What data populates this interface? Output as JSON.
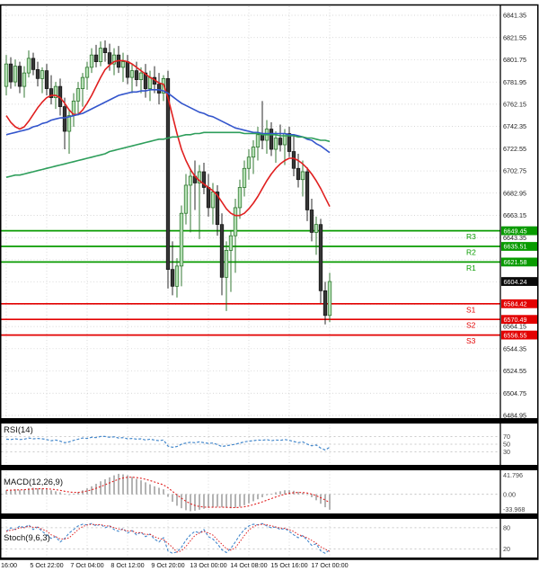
{
  "chart_data": {
    "type": "candlestick",
    "price_axis": {
      "ticks": [
        "6841.35",
        "6821.55",
        "6801.75",
        "6781.95",
        "6762.15",
        "6742.35",
        "6722.55",
        "6702.75",
        "6682.95",
        "6663.15",
        "6643.35",
        "6623.55",
        "6603.75",
        "6583.95",
        "6564.15",
        "6544.35",
        "6524.55",
        "6504.75",
        "6484.95"
      ]
    },
    "time_axis": {
      "labels": [
        "16:00",
        "5 Oct 22:00",
        "7 Oct 04:00",
        "8 Oct 12:00",
        "9 Oct 20:00",
        "13 Oct 00:00",
        "14 Oct 08:00",
        "15 Oct 16:00",
        "17 Oct 00:00"
      ],
      "label_positions": [
        0,
        9,
        18,
        27,
        36,
        45,
        54,
        63,
        72
      ]
    },
    "levels": {
      "resistance": [
        {
          "label": "R3",
          "price": 6649.45
        },
        {
          "label": "R2",
          "price": 6635.51
        },
        {
          "label": "R1",
          "price": 6621.58
        }
      ],
      "support": [
        {
          "label": "S1",
          "price": 6584.42
        },
        {
          "label": "S2",
          "price": 6570.49
        },
        {
          "label": "S3",
          "price": 6556.55
        }
      ],
      "current_price": 6604.24
    },
    "colors": {
      "resistance": "#089b00",
      "support": "#e30202",
      "current_badge": "#0a0a0a",
      "badge_text": "#ffffff",
      "ma_fast": "#e02020",
      "ma_mid": "#3355cc",
      "ma_slow": "#2e9e5b",
      "bull": "#b5e0b5",
      "bull_border": "#1d6b1d",
      "bear": "#363636",
      "bear_border": "#111111",
      "rsi_line": "#4488cc",
      "macd_hist": "#b4b4b4",
      "macd_signal": "#e02020",
      "stoch_k": "#4488cc",
      "stoch_d": "#e02020",
      "grid": "#c9c9c9",
      "axis_text": "#1a1a1a"
    },
    "candles": [
      [
        6778,
        6806,
        6770,
        6798
      ],
      [
        6798,
        6804,
        6776,
        6782
      ],
      [
        6782,
        6802,
        6778,
        6796
      ],
      [
        6796,
        6800,
        6772,
        6778
      ],
      [
        6778,
        6796,
        6768,
        6790
      ],
      [
        6790,
        6810,
        6786,
        6803
      ],
      [
        6803,
        6808,
        6788,
        6793
      ],
      [
        6793,
        6800,
        6778,
        6785
      ],
      [
        6785,
        6795,
        6772,
        6792
      ],
      [
        6792,
        6798,
        6770,
        6776
      ],
      [
        6776,
        6788,
        6762,
        6768
      ],
      [
        6768,
        6782,
        6758,
        6778
      ],
      [
        6778,
        6785,
        6752,
        6760
      ],
      [
        6760,
        6768,
        6722,
        6738
      ],
      [
        6738,
        6758,
        6718,
        6752
      ],
      [
        6752,
        6772,
        6742,
        6765
      ],
      [
        6765,
        6782,
        6752,
        6776
      ],
      [
        6776,
        6790,
        6760,
        6786
      ],
      [
        6786,
        6800,
        6775,
        6795
      ],
      [
        6795,
        6812,
        6790,
        6806
      ],
      [
        6806,
        6815,
        6795,
        6800
      ],
      [
        6800,
        6818,
        6796,
        6812
      ],
      [
        6812,
        6819,
        6800,
        6808
      ],
      [
        6808,
        6816,
        6792,
        6798
      ],
      [
        6798,
        6812,
        6788,
        6806
      ],
      [
        6806,
        6814,
        6790,
        6795
      ],
      [
        6795,
        6808,
        6782,
        6800
      ],
      [
        6800,
        6806,
        6780,
        6786
      ],
      [
        6786,
        6798,
        6772,
        6792
      ],
      [
        6792,
        6800,
        6778,
        6784
      ],
      [
        6784,
        6795,
        6772,
        6790
      ],
      [
        6790,
        6798,
        6768,
        6776
      ],
      [
        6776,
        6792,
        6765,
        6786
      ],
      [
        6786,
        6796,
        6772,
        6780
      ],
      [
        6780,
        6790,
        6762,
        6772
      ],
      [
        6772,
        6788,
        6765,
        6785
      ],
      [
        6785,
        6792,
        6598,
        6615
      ],
      [
        6615,
        6640,
        6592,
        6600
      ],
      [
        6600,
        6625,
        6590,
        6618
      ],
      [
        6618,
        6672,
        6600,
        6665
      ],
      [
        6665,
        6700,
        6655,
        6690
      ],
      [
        6690,
        6705,
        6648,
        6698
      ],
      [
        6698,
        6712,
        6668,
        6692
      ],
      [
        6692,
        6708,
        6642,
        6702
      ],
      [
        6702,
        6710,
        6682,
        6688
      ],
      [
        6688,
        6700,
        6662,
        6670
      ],
      [
        6670,
        6692,
        6655,
        6684
      ],
      [
        6684,
        6690,
        6645,
        6655
      ],
      [
        6655,
        6665,
        6592,
        6608
      ],
      [
        6608,
        6640,
        6578,
        6632
      ],
      [
        6632,
        6650,
        6595,
        6645
      ],
      [
        6645,
        6678,
        6612,
        6670
      ],
      [
        6670,
        6695,
        6660,
        6688
      ],
      [
        6688,
        6712,
        6680,
        6705
      ],
      [
        6705,
        6722,
        6695,
        6715
      ],
      [
        6715,
        6730,
        6700,
        6724
      ],
      [
        6724,
        6742,
        6712,
        6735
      ],
      [
        6735,
        6765,
        6722,
        6730
      ],
      [
        6730,
        6748,
        6718,
        6740
      ],
      [
        6740,
        6746,
        6716,
        6722
      ],
      [
        6722,
        6738,
        6710,
        6732
      ],
      [
        6732,
        6744,
        6720,
        6726
      ],
      [
        6726,
        6740,
        6708,
        6736
      ],
      [
        6736,
        6742,
        6715,
        6720
      ],
      [
        6720,
        6734,
        6698,
        6705
      ],
      [
        6705,
        6718,
        6688,
        6695
      ],
      [
        6695,
        6712,
        6680,
        6702
      ],
      [
        6702,
        6706,
        6658,
        6668
      ],
      [
        6668,
        6678,
        6640,
        6648
      ],
      [
        6648,
        6662,
        6628,
        6655
      ],
      [
        6655,
        6660,
        6585,
        6596
      ],
      [
        6596,
        6604,
        6566,
        6574
      ],
      [
        6574,
        6612,
        6568,
        6604.24
      ]
    ],
    "moving_averages": [
      {
        "name": "ma-fast-red",
        "values": [
          6752,
          6746,
          6742,
          6740,
          6742,
          6747,
          6753,
          6759,
          6764,
          6768,
          6770,
          6770,
          6768,
          6763,
          6757,
          6753,
          6753,
          6757,
          6763,
          6770,
          6778,
          6786,
          6793,
          6797,
          6800,
          6801,
          6801,
          6800,
          6798,
          6795,
          6792,
          6789,
          6786,
          6784,
          6781,
          6780,
          6768,
          6752,
          6736,
          6722,
          6712,
          6704,
          6698,
          6694,
          6691,
          6688,
          6685,
          6681,
          6675,
          6669,
          6665,
          6663,
          6663,
          6665,
          6669,
          6674,
          6680,
          6687,
          6694,
          6700,
          6705,
          6709,
          6712,
          6714,
          6714,
          6712,
          6709,
          6705,
          6700,
          6694,
          6687,
          6679,
          6671
        ]
      },
      {
        "name": "ma-mid-blue",
        "values": [
          6735,
          6736,
          6737,
          6738,
          6739,
          6740,
          6742,
          6743,
          6745,
          6746,
          6748,
          6749,
          6750,
          6750,
          6751,
          6752,
          6753,
          6754,
          6756,
          6758,
          6760,
          6762,
          6764,
          6766,
          6768,
          6770,
          6771,
          6772,
          6773,
          6773,
          6774,
          6774,
          6775,
          6775,
          6775,
          6774,
          6772,
          6769,
          6766,
          6763,
          6761,
          6759,
          6757,
          6755,
          6754,
          6752,
          6751,
          6749,
          6747,
          6745,
          6743,
          6741,
          6740,
          6739,
          6738,
          6737,
          6737,
          6736,
          6736,
          6736,
          6736,
          6736,
          6736,
          6735,
          6735,
          6734,
          6733,
          6731,
          6730,
          6727,
          6725,
          6722,
          6719
        ]
      },
      {
        "name": "ma-slow-green",
        "values": [
          6697,
          6698,
          6699,
          6699,
          6700,
          6701,
          6702,
          6703,
          6704,
          6705,
          6706,
          6707,
          6708,
          6709,
          6710,
          6711,
          6712,
          6713,
          6714,
          6715,
          6716,
          6717,
          6718,
          6720,
          6721,
          6722,
          6723,
          6724,
          6725,
          6726,
          6727,
          6728,
          6729,
          6730,
          6731,
          6731,
          6732,
          6733,
          6733,
          6734,
          6735,
          6735,
          6736,
          6736,
          6737,
          6737,
          6737,
          6737,
          6737,
          6737,
          6737,
          6737,
          6737,
          6736,
          6736,
          6736,
          6736,
          6735,
          6735,
          6735,
          6735,
          6734,
          6734,
          6734,
          6734,
          6733,
          6733,
          6732,
          6732,
          6731,
          6730,
          6730,
          6729
        ]
      }
    ],
    "indicators": {
      "rsi": {
        "label": "RSI(14)",
        "levels": [
          "70",
          "50",
          "30"
        ],
        "values": [
          63,
          62,
          64,
          62,
          63,
          66,
          64,
          65,
          64,
          62,
          59,
          61,
          58,
          54,
          56,
          60,
          63,
          66,
          65,
          68,
          67,
          70,
          70,
          68,
          69,
          66,
          67,
          64,
          65,
          63,
          64,
          61,
          63,
          61,
          59,
          61,
          45,
          42,
          44,
          50,
          53,
          55,
          54,
          56,
          54,
          52,
          53,
          49,
          44,
          46,
          48,
          50,
          53,
          56,
          58,
          59,
          61,
          60,
          62,
          59,
          61,
          60,
          62,
          60,
          57,
          54,
          56,
          50,
          46,
          48,
          40,
          35,
          42
        ]
      },
      "macd": {
        "label": "MACD(12,26,9)",
        "axis_labels": [
          "41.796",
          "0.00",
          "-33.968"
        ],
        "range": [
          41.796,
          -33.968
        ],
        "values": [
          8,
          9,
          10,
          9,
          10,
          12,
          13,
          12,
          12,
          10,
          8,
          6,
          4,
          1,
          0,
          1,
          4,
          8,
          12,
          16,
          21,
          26,
          30,
          34,
          38,
          41,
          40,
          38,
          35,
          31,
          28,
          24,
          20,
          16,
          13,
          10,
          -5,
          -15,
          -23,
          -28,
          -32,
          -34,
          -33,
          -31,
          -29,
          -27,
          -26,
          -25,
          -26,
          -27,
          -28,
          -27,
          -25,
          -22,
          -18,
          -14,
          -10,
          -6,
          -2,
          1,
          4,
          6,
          8,
          8,
          7,
          5,
          3,
          -1,
          -6,
          -12,
          -19,
          -26,
          -31
        ]
      },
      "stoch": {
        "label": "Stoch(9,6,3)",
        "levels": [
          "80",
          "20"
        ],
        "values": [
          70,
          80,
          75,
          85,
          80,
          88,
          75,
          82,
          70,
          60,
          50,
          55,
          40,
          50,
          65,
          75,
          85,
          90,
          88,
          92,
          85,
          90,
          80,
          85,
          75,
          70,
          78,
          65,
          72,
          60,
          68,
          55,
          62,
          48,
          40,
          52,
          15,
          8,
          12,
          25,
          45,
          60,
          70,
          65,
          75,
          55,
          48,
          35,
          18,
          10,
          22,
          40,
          60,
          75,
          85,
          90,
          88,
          92,
          85,
          80,
          82,
          75,
          78,
          70,
          60,
          52,
          58,
          45,
          30,
          35,
          15,
          8,
          18
        ]
      }
    }
  }
}
